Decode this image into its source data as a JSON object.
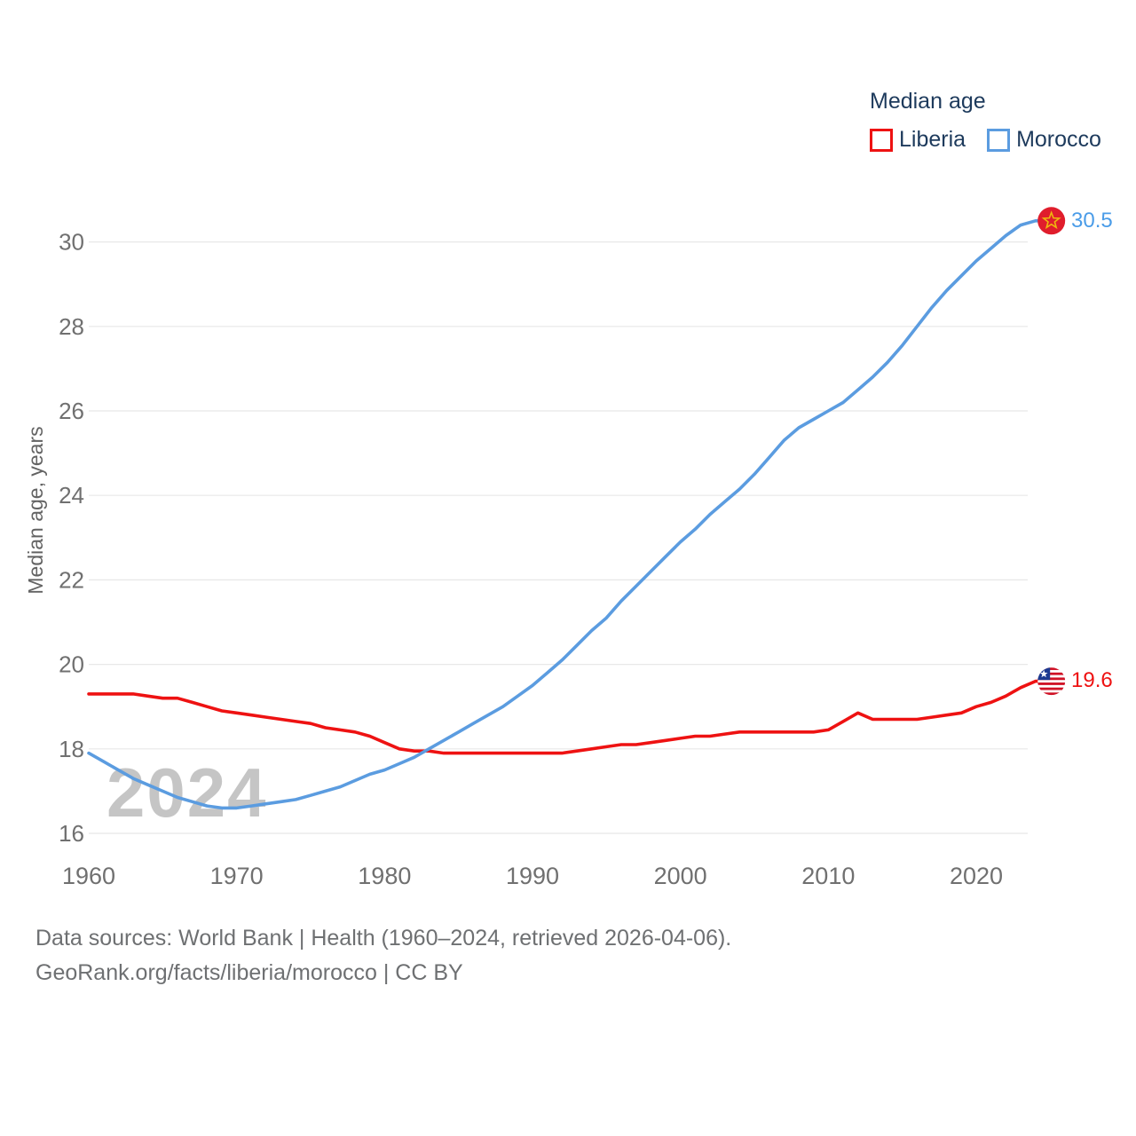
{
  "legend": {
    "title": "Median age",
    "entries": [
      {
        "label": "Liberia",
        "color": "#ee1212"
      },
      {
        "label": "Morocco",
        "color": "#5b9ce0"
      }
    ]
  },
  "watermark": "2024",
  "y_axis_title": "Median age, years",
  "end_labels": {
    "morocco": "30.5",
    "liberia": "19.6"
  },
  "footer": {
    "line1": "Data sources: World Bank | Health (1960–2024, retrieved 2026-04-06).",
    "line2": "GeoRank.org/facts/liberia/morocco | CC BY"
  },
  "colors": {
    "liberia_line": "#ee1212",
    "morocco_line": "#5b9ce0",
    "gridline": "#e8e8e8",
    "tick_label": "#707070",
    "legend_text": "#1d3a5c",
    "morocco_flag_red": "#e01d2c",
    "morocco_flag_star": "#efb70e",
    "liberia_flag_red": "#cf1125",
    "liberia_flag_blue": "#1b3a91"
  },
  "chart_data": {
    "type": "line",
    "title": "Median age",
    "xlabel": "",
    "ylabel": "Median age, years",
    "grid": true,
    "legend_position": "top-right",
    "xlim": [
      1960,
      2024
    ],
    "ylim": [
      15.6,
      31
    ],
    "x_ticks": [
      1960,
      1970,
      1980,
      1990,
      2000,
      2010,
      2020
    ],
    "y_ticks": [
      16,
      18,
      20,
      22,
      24,
      26,
      28,
      30
    ],
    "x": [
      1960,
      1961,
      1962,
      1963,
      1964,
      1965,
      1966,
      1967,
      1968,
      1969,
      1970,
      1971,
      1972,
      1973,
      1974,
      1975,
      1976,
      1977,
      1978,
      1979,
      1980,
      1981,
      1982,
      1983,
      1984,
      1985,
      1986,
      1987,
      1988,
      1989,
      1990,
      1991,
      1992,
      1993,
      1994,
      1995,
      1996,
      1997,
      1998,
      1999,
      2000,
      2001,
      2002,
      2003,
      2004,
      2005,
      2006,
      2007,
      2008,
      2009,
      2010,
      2011,
      2012,
      2013,
      2014,
      2015,
      2016,
      2017,
      2018,
      2019,
      2020,
      2021,
      2022,
      2023,
      2024
    ],
    "series": [
      {
        "name": "Liberia",
        "color": "#ee1212",
        "end_value": 19.6,
        "values": [
          19.3,
          19.3,
          19.3,
          19.3,
          19.25,
          19.2,
          19.2,
          19.1,
          19.0,
          18.9,
          18.85,
          18.8,
          18.75,
          18.7,
          18.65,
          18.6,
          18.5,
          18.45,
          18.4,
          18.3,
          18.15,
          18.0,
          17.95,
          17.95,
          17.9,
          17.9,
          17.9,
          17.9,
          17.9,
          17.9,
          17.9,
          17.9,
          17.9,
          17.95,
          18.0,
          18.05,
          18.1,
          18.1,
          18.15,
          18.2,
          18.25,
          18.3,
          18.3,
          18.35,
          18.4,
          18.4,
          18.4,
          18.4,
          18.4,
          18.4,
          18.45,
          18.65,
          18.85,
          18.7,
          18.7,
          18.7,
          18.7,
          18.75,
          18.8,
          18.85,
          19.0,
          19.1,
          19.25,
          19.45,
          19.6
        ]
      },
      {
        "name": "Morocco",
        "color": "#5b9ce0",
        "end_value": 30.5,
        "values": [
          17.9,
          17.7,
          17.5,
          17.3,
          17.15,
          17.0,
          16.85,
          16.75,
          16.65,
          16.6,
          16.6,
          16.65,
          16.7,
          16.75,
          16.8,
          16.9,
          17.0,
          17.1,
          17.25,
          17.4,
          17.5,
          17.65,
          17.8,
          18.0,
          18.2,
          18.4,
          18.6,
          18.8,
          19.0,
          19.25,
          19.5,
          19.8,
          20.1,
          20.45,
          20.8,
          21.1,
          21.5,
          21.85,
          22.2,
          22.55,
          22.9,
          23.2,
          23.55,
          23.85,
          24.15,
          24.5,
          24.9,
          25.3,
          25.6,
          25.8,
          26.0,
          26.2,
          26.5,
          26.8,
          27.15,
          27.55,
          28.0,
          28.45,
          28.85,
          29.2,
          29.55,
          29.85,
          30.15,
          30.4,
          30.5
        ]
      }
    ]
  }
}
